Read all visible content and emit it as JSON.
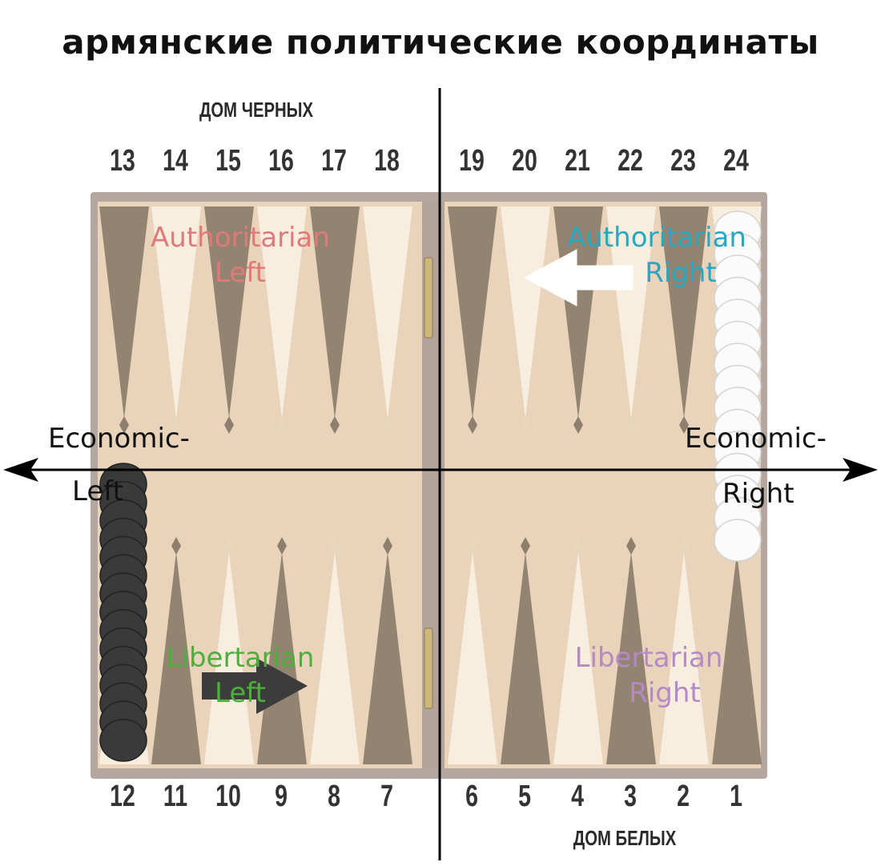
{
  "title": "армянские политические координаты",
  "house_black": "ДОМ ЧЕРНЫХ",
  "house_white": "ДОМ БЕЛЫХ",
  "top_left_points": [
    "13",
    "14",
    "15",
    "16",
    "17",
    "18"
  ],
  "top_right_points": [
    "19",
    "20",
    "21",
    "22",
    "23",
    "24"
  ],
  "bottom_left_points": [
    "12",
    "11",
    "10",
    "9",
    "8",
    "7"
  ],
  "bottom_right_points": [
    "6",
    "5",
    "4",
    "3",
    "2",
    "1"
  ],
  "quadrants": {
    "authoritarian_left": {
      "line1": "Authoritarian",
      "line2": "Left",
      "color": "#e07a7a"
    },
    "authoritarian_right": {
      "line1": "Authoritarian",
      "line2": "Right",
      "color": "#2aa7c0"
    },
    "libertarian_left": {
      "line1": "Libertarian",
      "line2": "Left",
      "color": "#4caf3c"
    },
    "libertarian_right": {
      "line1": "Libertarian",
      "line2": "Right",
      "color": "#b58ac4"
    }
  },
  "axis": {
    "left_line1": "Economic-",
    "left_line2": "Left",
    "right_line1": "Economic-",
    "right_line2": "Right"
  },
  "colors": {
    "board_frame": "#9a8a80",
    "board_field": "#f2dcc0",
    "dark_point": "#7d6f5f",
    "light_point": "#f8efe2",
    "black_checker": "#3a3a3a",
    "white_checker": "#fbfbfb"
  },
  "checkers": {
    "black_count": 15,
    "white_count": 15
  }
}
